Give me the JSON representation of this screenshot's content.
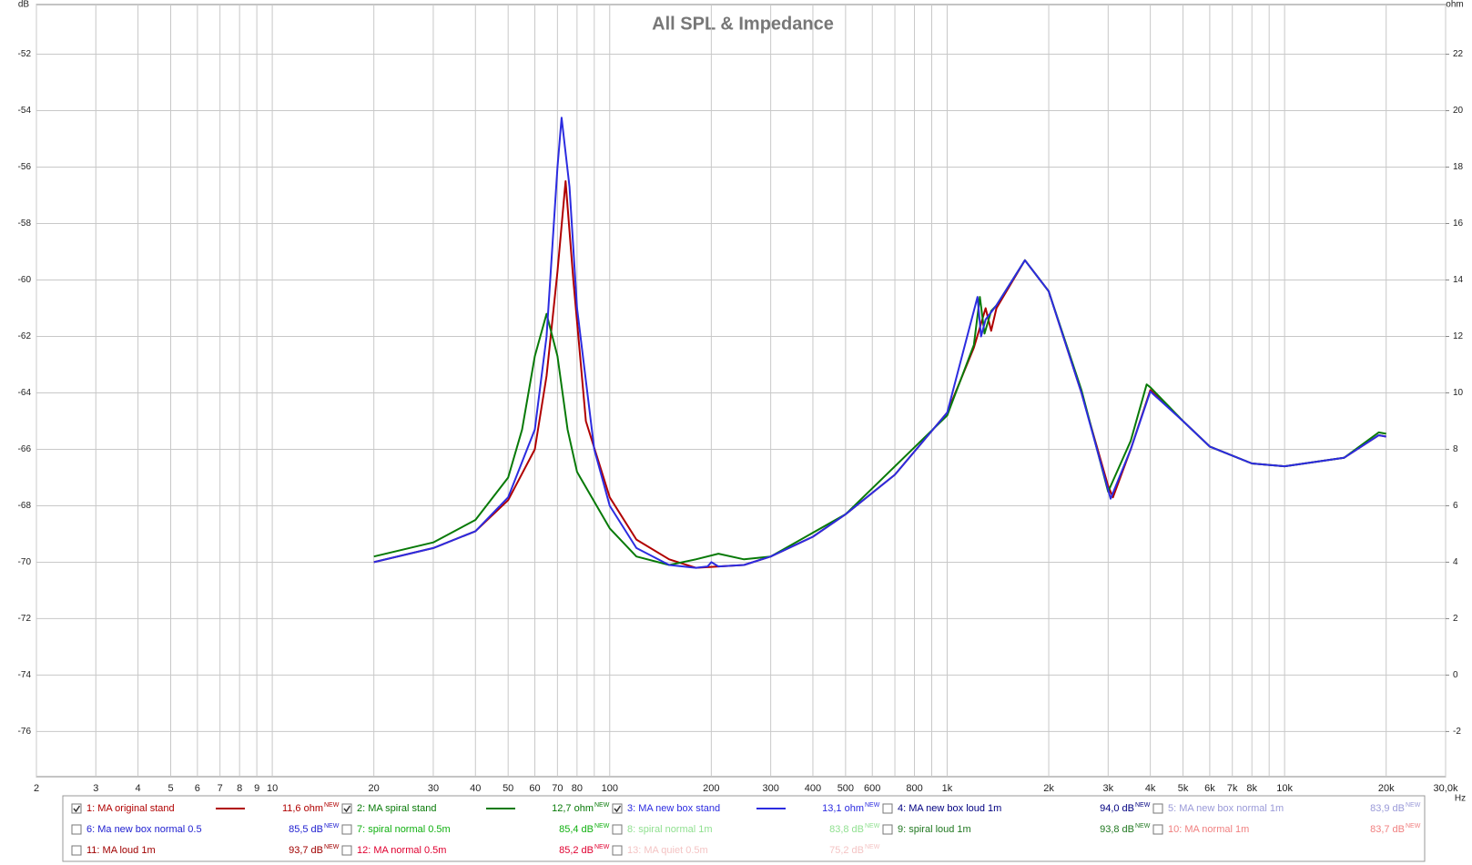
{
  "chart_data": {
    "type": "line",
    "title": "All SPL & Impedance",
    "ylabel": "dB",
    "y2label": "ohm",
    "xlabel": "Hz",
    "xscale": "log",
    "grid": true,
    "xlim": [
      2,
      30000
    ],
    "xticks": [
      2,
      3,
      4,
      5,
      6,
      7,
      8,
      9,
      10,
      20,
      30,
      40,
      50,
      60,
      70,
      80,
      100,
      200,
      300,
      400,
      500,
      600,
      800,
      {
        "value": 1000,
        "label": "1k"
      },
      {
        "value": 2000,
        "label": "2k"
      },
      {
        "value": 3000,
        "label": "3k"
      },
      {
        "value": 4000,
        "label": "4k"
      },
      {
        "value": 5000,
        "label": "5k"
      },
      {
        "value": 6000,
        "label": "6k"
      },
      {
        "value": 7000,
        "label": "7k"
      },
      {
        "value": 8000,
        "label": "8k"
      },
      {
        "value": 10000,
        "label": "10k"
      },
      {
        "value": 20000,
        "label": "20k"
      },
      {
        "value": 30000,
        "label": "30,0k"
      }
    ],
    "xminor": [
      90,
      700,
      900,
      9000
    ],
    "ylim": [
      -77.6,
      -50.24
    ],
    "yticks": [
      -52,
      -54,
      -56,
      -58,
      -60,
      -62,
      -64,
      -66,
      -68,
      -70,
      -72,
      -74,
      -76
    ],
    "y2lim": [
      -3.6,
      23.76
    ],
    "y2ticks": [
      22,
      20,
      18,
      16,
      14,
      12,
      10,
      8,
      6,
      4,
      2,
      0,
      -2
    ],
    "series": [
      {
        "name": "1: MA original stand",
        "color": "#b00000",
        "checked": true,
        "reading": "11,6 ohm",
        "tag": "NEW",
        "axis": "y2",
        "x": [
          20,
          30,
          40,
          50,
          60,
          65,
          70,
          74,
          78,
          85,
          100,
          120,
          150,
          180,
          250,
          300,
          400,
          500,
          700,
          1000,
          1200,
          1300,
          1350,
          1400,
          1700,
          2000,
          2500,
          3000,
          3100,
          3500,
          4000,
          5000,
          6000,
          8000,
          10000,
          15000,
          19000,
          20000
        ],
        "values": [
          4.0,
          4.5,
          5.1,
          6.2,
          8.0,
          10.6,
          14.3,
          17.5,
          14.0,
          9.0,
          6.3,
          4.8,
          4.1,
          3.8,
          3.9,
          4.2,
          4.9,
          5.7,
          7.1,
          9.3,
          11.6,
          13.0,
          12.2,
          13.0,
          14.7,
          13.6,
          10.0,
          6.7,
          6.3,
          8.0,
          10.1,
          9.0,
          8.1,
          7.5,
          7.4,
          7.7,
          8.5,
          8.45
        ]
      },
      {
        "name": "2: MA spiral stand",
        "color": "#087a08",
        "checked": true,
        "reading": "12,7 ohm",
        "tag": "NEW",
        "axis": "y2",
        "x": [
          20,
          30,
          40,
          50,
          55,
          60,
          65,
          70,
          75,
          80,
          100,
          120,
          150,
          180,
          210,
          250,
          300,
          500,
          1000,
          1200,
          1250,
          1290,
          1350,
          1400,
          1700,
          2000,
          2500,
          3000,
          3500,
          3900,
          4000,
          5000,
          6000,
          8000,
          10000,
          15000,
          19000,
          20000
        ],
        "values": [
          4.2,
          4.7,
          5.5,
          7.0,
          8.7,
          11.3,
          12.8,
          11.3,
          8.7,
          7.2,
          5.2,
          4.2,
          3.9,
          4.1,
          4.3,
          4.1,
          4.2,
          5.7,
          9.2,
          11.7,
          13.4,
          12.1,
          12.9,
          13.1,
          14.7,
          13.6,
          10.1,
          6.5,
          8.3,
          10.3,
          10.2,
          9.0,
          8.1,
          7.5,
          7.4,
          7.7,
          8.6,
          8.55
        ]
      },
      {
        "name": "3: MA new box stand",
        "color": "#2c2ce0",
        "checked": true,
        "reading": "13,1 ohm",
        "tag": "NEW",
        "axis": "y2",
        "x": [
          20,
          30,
          40,
          50,
          60,
          65,
          70,
          72,
          76,
          80,
          90,
          100,
          120,
          150,
          180,
          195,
          200,
          210,
          250,
          300,
          400,
          500,
          700,
          1000,
          1230,
          1260,
          1300,
          1400,
          1700,
          2000,
          2500,
          3050,
          3500,
          4000,
          5000,
          6000,
          8000,
          10000,
          15000,
          19000,
          20000
        ],
        "values": [
          4.0,
          4.5,
          5.1,
          6.3,
          8.7,
          12.0,
          18.0,
          19.75,
          17.3,
          13.0,
          8.0,
          6.0,
          4.5,
          3.9,
          3.8,
          3.85,
          4.0,
          3.85,
          3.9,
          4.2,
          4.9,
          5.7,
          7.1,
          9.3,
          13.4,
          12.0,
          12.6,
          13.1,
          14.7,
          13.6,
          10.0,
          6.25,
          8.0,
          10.05,
          9.0,
          8.1,
          7.5,
          7.4,
          7.7,
          8.5,
          8.45
        ]
      },
      {
        "name": "4: MA new box loud 1m",
        "color": "#000080",
        "checked": false,
        "reading": "94,0 dB",
        "tag": "NEW"
      },
      {
        "name": "5: MA new box normal 1m",
        "color": "#9a9ad8",
        "checked": false,
        "reading": "83,9 dB",
        "tag": "NEW"
      },
      {
        "name": "6: Ma new box normal 0.5",
        "color": "#2020d0",
        "checked": false,
        "reading": "85,5 dB",
        "tag": "NEW"
      },
      {
        "name": "7: spiral normal 0.5m",
        "color": "#10b010",
        "checked": false,
        "reading": "85,4 dB",
        "tag": "NEW"
      },
      {
        "name": "8: spiral normal 1m",
        "color": "#90e090",
        "checked": false,
        "reading": "83,8 dB",
        "tag": "NEW"
      },
      {
        "name": "9: spiral loud 1m",
        "color": "#207820",
        "checked": false,
        "reading": "93,8 dB",
        "tag": "NEW"
      },
      {
        "name": "10: MA normal 1m",
        "color": "#f08080",
        "checked": false,
        "reading": "83,7 dB",
        "tag": "NEW"
      },
      {
        "name": "11: MA loud 1m",
        "color": "#a00000",
        "checked": false,
        "reading": "93,7 dB",
        "tag": "NEW"
      },
      {
        "name": "12: MA normal 0.5m",
        "color": "#e00030",
        "checked": false,
        "reading": "85,2 dB",
        "tag": "NEW"
      },
      {
        "name": "13: MA quiet 0.5m",
        "color": "#f4c4c4",
        "checked": false,
        "reading": "75,2 dB",
        "tag": "NEW"
      }
    ]
  }
}
